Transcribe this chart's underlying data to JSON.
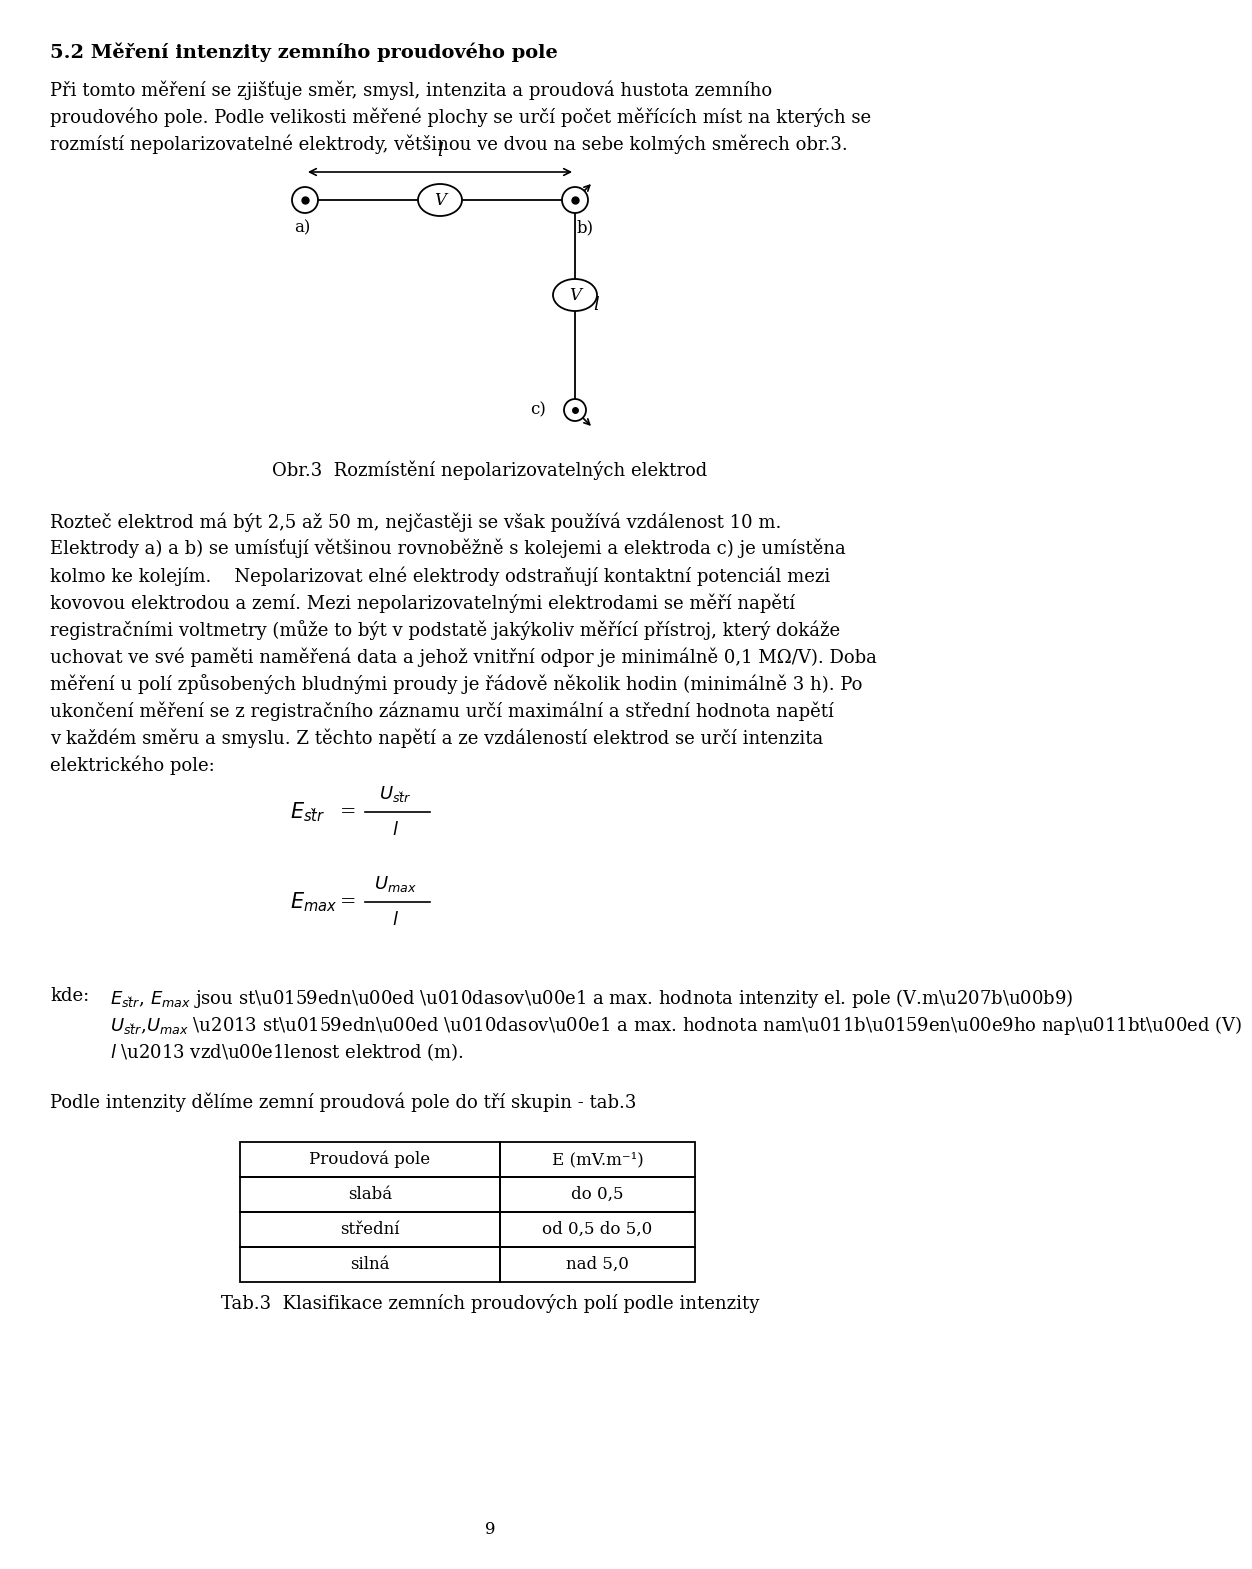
{
  "title": "5.2 Měření intenzity zemního proudového pole",
  "p1_lines": [
    "Při tomto měření se zjišťuje směr, smysl, intenzita a proudová hustota zemního",
    "proudového pole. Podle velikosti měřené plochy se určí počet měřících míst na kterých se",
    "rozmístí nepolarizovatelné elektrody, většinou ve dvou na sebe kolmých směrech obr.3."
  ],
  "fig_caption": "Obr.3  Rozmístění nepolarizovatelných elektrod",
  "p2_lines": [
    "Rozteč elektrod má být 2,5 až 50 m, nejčastěji se však používá vzdálenost 10 m.",
    "Elektrody a) a b) se umísťují většinou rovnoběžně s kolejemi a elektroda c) je umístěna",
    "kolmo ke kolejím.    Nepolarizovat elné elektrody odstraňují kontaktní potenciál mezi",
    "kovovou elektrodou a zemí. Mezi nepolarizovatelnými elektrodami se měří napětí",
    "registračními voltmetry (může to být v podstatě jakýkoliv měřící přístroj, který dokáže",
    "uchovat ve své paměti naměřená data a jehož vnitřní odpor je minimálně 0,1 MΩ/V). Doba",
    "měření u polí způsobených bludnými proudy je řádově několik hodin (minimálně 3 h). Po",
    "ukončení měření se z registračního záznamu určí maximální a střední hodnota napětí",
    "v každém směru a smyslu. Z těchto napětí a ze vzdáleností elektrod se určí intenzita",
    "elektrického pole:"
  ],
  "kde_line1": "kde:    $E_{st\\check{r}}$, $E_{max}$ jsou střední časová a max. hodnota intenzity el. pole (V.m⁻¹)",
  "kde_line2": "         $U_{st\\check{r}}$,$U_{max}$ – střední časová a max. hodnota naměřeného napětí (V)",
  "kde_line3": "         $l$ – vzdálenost elektrod (m).",
  "p4": "Podle intenzity dělíme zemní proudová pole do tří skupin - tab.3",
  "table_headers": [
    "Proudová pole",
    "E (mV.m⁻¹)"
  ],
  "table_rows": [
    [
      "slabá",
      "do 0,5"
    ],
    [
      "střední",
      "od 0,5 do 5,0"
    ],
    [
      "silná",
      "nad 5,0"
    ]
  ],
  "table_caption": "Tab.3  Klasifikace zemních proudových polí podle intenzity",
  "page_number": "9",
  "bg_color": "#ffffff"
}
